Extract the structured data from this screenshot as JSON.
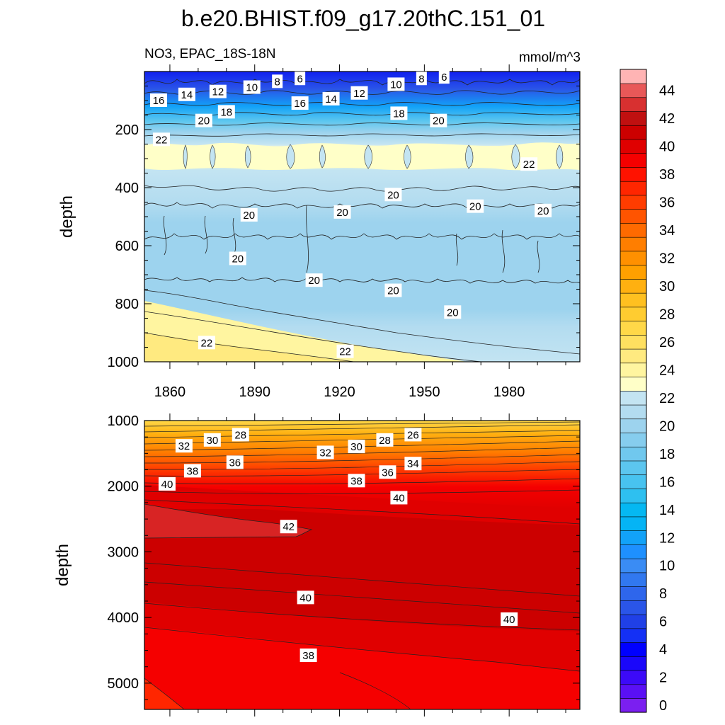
{
  "title": "b.e20.BHIST.f09_g17.20thC.151_01",
  "subtitle_left": "NO3, EPAC_18S-18N",
  "subtitle_right": "mmol/m^3",
  "chart_data": {
    "type": "heatmap",
    "x_ticks": [
      "1860",
      "1890",
      "1920",
      "1950",
      "1980"
    ],
    "x_range": [
      1851,
      2005
    ],
    "x_tick_values": [
      1860,
      1890,
      1920,
      1950,
      1980
    ],
    "colorbar": {
      "levels": [
        0,
        1,
        2,
        3,
        4,
        5,
        6,
        7,
        8,
        9,
        10,
        11,
        12,
        13,
        14,
        15,
        16,
        17,
        18,
        19,
        20,
        21,
        22,
        23,
        24,
        25,
        26,
        27,
        28,
        29,
        30,
        31,
        32,
        33,
        34,
        35,
        36,
        37,
        38,
        39,
        40,
        41,
        42,
        43,
        44,
        45
      ],
      "tick_labels": [
        "0",
        "2",
        "4",
        "6",
        "8",
        "10",
        "12",
        "14",
        "16",
        "18",
        "20",
        "22",
        "24",
        "26",
        "28",
        "30",
        "32",
        "34",
        "36",
        "38",
        "40",
        "42",
        "44"
      ],
      "colors": [
        "#7b1ff0",
        "#5a10f5",
        "#3c0af8",
        "#1a07fa",
        "#0000ff",
        "#1430f5",
        "#2040e6",
        "#2a55e8",
        "#2e66ec",
        "#3178ef",
        "#3a8cf4",
        "#1e90ff",
        "#12a2f8",
        "#05b4f5",
        "#05b8f2",
        "#2ec0f0",
        "#48c3f0",
        "#5cc6ef",
        "#70c8ee",
        "#86cdee",
        "#9dd3ee",
        "#b3dcf0",
        "#c3e4f2",
        "#ffffc8",
        "#fff5a0",
        "#ffea80",
        "#ffe060",
        "#ffd848",
        "#ffcc30",
        "#ffc020",
        "#ffb010",
        "#ffa000",
        "#ff9000",
        "#ff7e00",
        "#ff6a00",
        "#ff5400",
        "#ff3c00",
        "#ff2600",
        "#ff1200",
        "#f50000",
        "#e00000",
        "#cc0000",
        "#c01010",
        "#d83030",
        "#e85858",
        "#ffb4b4"
      ]
    },
    "panels": [
      {
        "name": "upper-ocean",
        "ylabel": "depth",
        "y_range": [
          0,
          1000
        ],
        "y_ticks": [
          "200",
          "400",
          "600",
          "800",
          "1000"
        ],
        "y_tick_values": [
          200,
          400,
          600,
          800,
          1000
        ],
        "contour_labels": [
          {
            "text": "16",
            "year": 1856,
            "depth": 100
          },
          {
            "text": "14",
            "year": 1866,
            "depth": 80
          },
          {
            "text": "12",
            "year": 1877,
            "depth": 70
          },
          {
            "text": "10",
            "year": 1889,
            "depth": 55
          },
          {
            "text": "8",
            "year": 1898,
            "depth": 35
          },
          {
            "text": "6",
            "year": 1906,
            "depth": 25
          },
          {
            "text": "16",
            "year": 1906,
            "depth": 110
          },
          {
            "text": "14",
            "year": 1917,
            "depth": 95
          },
          {
            "text": "12",
            "year": 1927,
            "depth": 75
          },
          {
            "text": "10",
            "year": 1940,
            "depth": 45
          },
          {
            "text": "8",
            "year": 1949,
            "depth": 25
          },
          {
            "text": "6",
            "year": 1957,
            "depth": 20
          },
          {
            "text": "18",
            "year": 1880,
            "depth": 140
          },
          {
            "text": "18",
            "year": 1941,
            "depth": 145
          },
          {
            "text": "20",
            "year": 1872,
            "depth": 170
          },
          {
            "text": "20",
            "year": 1955,
            "depth": 170
          },
          {
            "text": "22",
            "year": 1857,
            "depth": 235
          },
          {
            "text": "22",
            "year": 1987,
            "depth": 320
          },
          {
            "text": "20",
            "year": 1939,
            "depth": 425
          },
          {
            "text": "20",
            "year": 1968,
            "depth": 465
          },
          {
            "text": "20",
            "year": 1992,
            "depth": 480
          },
          {
            "text": "20",
            "year": 1888,
            "depth": 495
          },
          {
            "text": "20",
            "year": 1921,
            "depth": 485
          },
          {
            "text": "20",
            "year": 1884,
            "depth": 645
          },
          {
            "text": "20",
            "year": 1911,
            "depth": 720
          },
          {
            "text": "20",
            "year": 1939,
            "depth": 755
          },
          {
            "text": "20",
            "year": 1960,
            "depth": 830
          },
          {
            "text": "22",
            "year": 1873,
            "depth": 935
          },
          {
            "text": "22",
            "year": 1922,
            "depth": 965
          }
        ]
      },
      {
        "name": "deep-ocean",
        "ylabel": "depth",
        "y_range": [
          1000,
          5400
        ],
        "y_ticks": [
          "1000",
          "2000",
          "3000",
          "4000",
          "5000"
        ],
        "y_tick_values": [
          1000,
          2000,
          3000,
          4000,
          5000
        ],
        "contour_labels": [
          {
            "text": "32",
            "year": 1865,
            "depth": 1390
          },
          {
            "text": "30",
            "year": 1875,
            "depth": 1300
          },
          {
            "text": "28",
            "year": 1885,
            "depth": 1220
          },
          {
            "text": "32",
            "year": 1915,
            "depth": 1490
          },
          {
            "text": "30",
            "year": 1926,
            "depth": 1400
          },
          {
            "text": "28",
            "year": 1936,
            "depth": 1300
          },
          {
            "text": "26",
            "year": 1946,
            "depth": 1220
          },
          {
            "text": "38",
            "year": 1868,
            "depth": 1770
          },
          {
            "text": "36",
            "year": 1883,
            "depth": 1640
          },
          {
            "text": "38",
            "year": 1926,
            "depth": 1920
          },
          {
            "text": "36",
            "year": 1937,
            "depth": 1790
          },
          {
            "text": "34",
            "year": 1946,
            "depth": 1660
          },
          {
            "text": "40",
            "year": 1859,
            "depth": 1970
          },
          {
            "text": "40",
            "year": 1941,
            "depth": 2180
          },
          {
            "text": "42",
            "year": 1902,
            "depth": 2620
          },
          {
            "text": "40",
            "year": 1908,
            "depth": 3700
          },
          {
            "text": "40",
            "year": 1980,
            "depth": 4030
          },
          {
            "text": "38",
            "year": 1909,
            "depth": 4580
          }
        ]
      }
    ]
  }
}
